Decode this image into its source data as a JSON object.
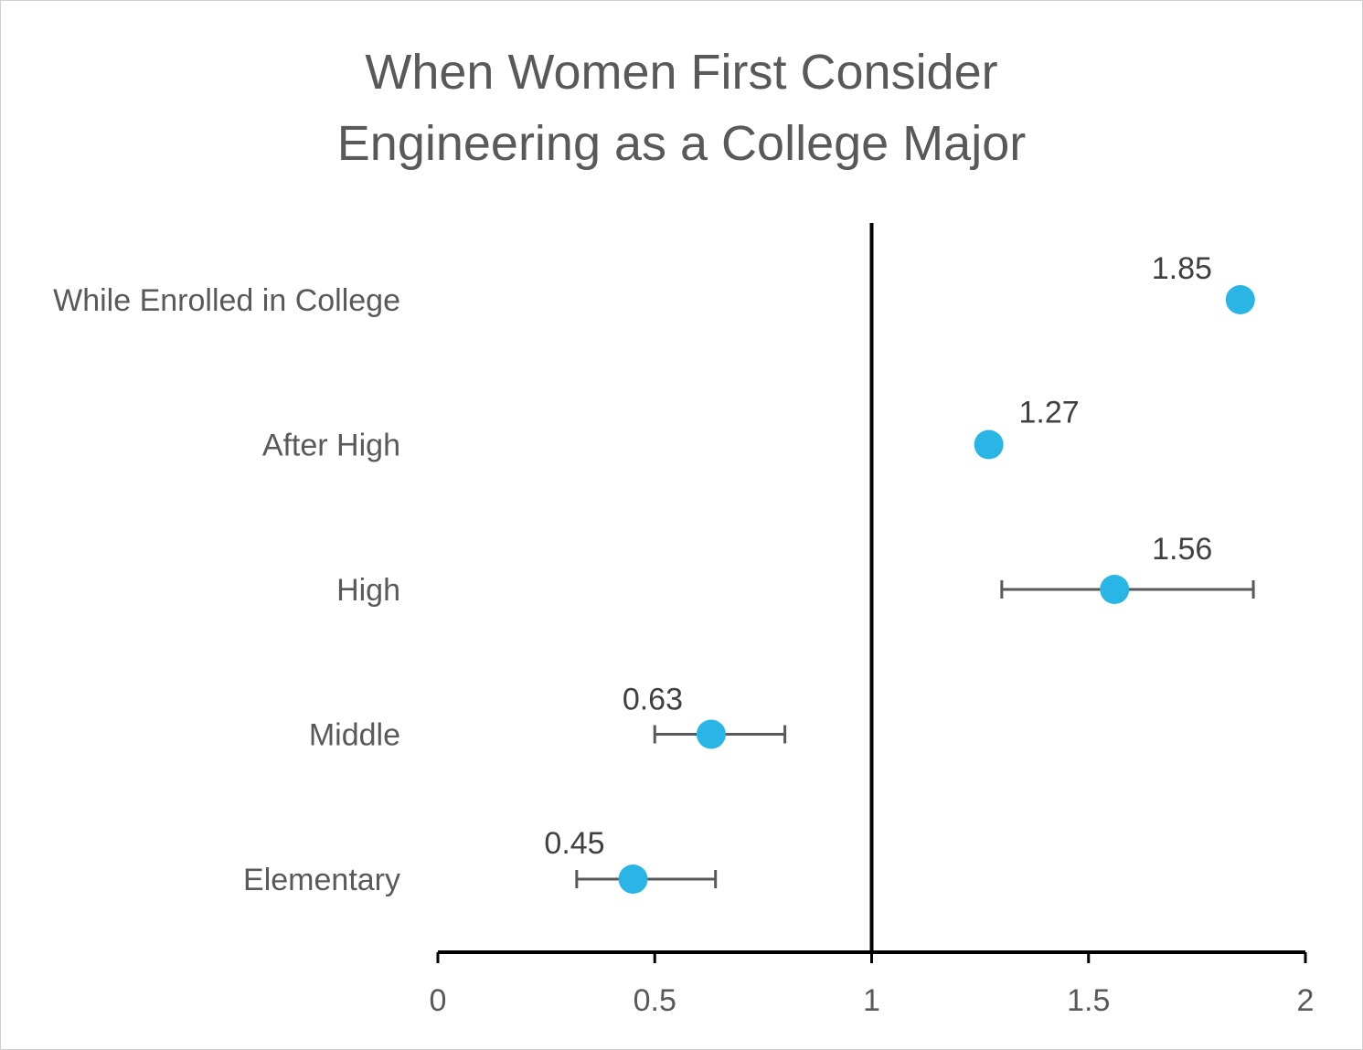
{
  "chart_data": {
    "type": "scatter",
    "title_lines": [
      "When Women First Consider",
      "Engineering as a College Major"
    ],
    "xlabel": "",
    "ylabel": "",
    "xlim": [
      0,
      2
    ],
    "x_ticks": [
      0,
      0.5,
      1,
      1.5,
      2
    ],
    "x_tick_labels": [
      "0",
      "0.5",
      "1",
      "1.5",
      "2"
    ],
    "reference_line_x": 1,
    "grid": false,
    "legend": "none",
    "marker_color": "#29B6E6",
    "error_bar_color": "#595959",
    "axis_color": "#000000",
    "categories": [
      "While Enrolled in College",
      "After High",
      "High",
      "Middle",
      "Elementary"
    ],
    "points": [
      {
        "category": "While Enrolled in College",
        "value": 1.85,
        "label": "1.85",
        "error_low": null,
        "error_high": null
      },
      {
        "category": "After High",
        "value": 1.27,
        "label": "1.27",
        "error_low": null,
        "error_high": null
      },
      {
        "category": "High",
        "value": 1.56,
        "label": "1.56",
        "error_low": 1.3,
        "error_high": 1.88
      },
      {
        "category": "Middle",
        "value": 0.63,
        "label": "0.63",
        "error_low": 0.5,
        "error_high": 0.8
      },
      {
        "category": "Elementary",
        "value": 0.45,
        "label": "0.45",
        "error_low": 0.32,
        "error_high": 0.64
      }
    ]
  }
}
